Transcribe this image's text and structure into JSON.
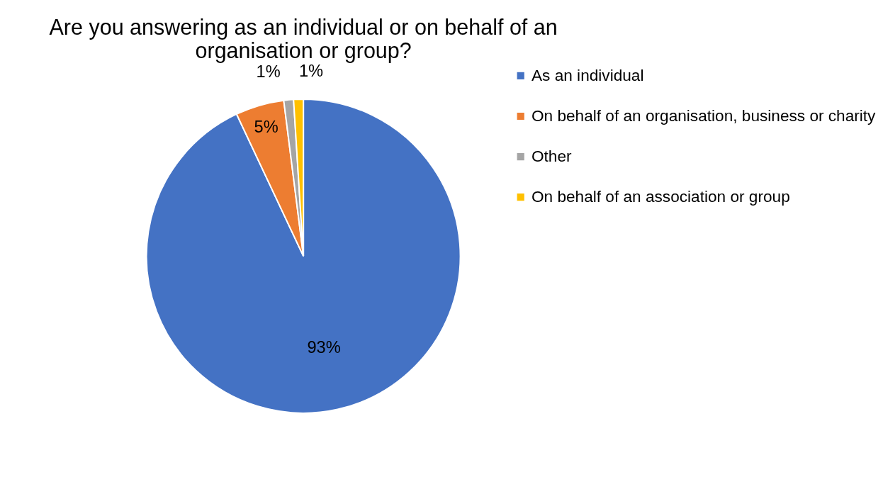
{
  "chart_data": {
    "type": "pie",
    "title": "Are you answering as an individual or on behalf of an organisation or group?",
    "categories": [
      "As an individual",
      "On behalf of an organisation, business or charity",
      "Other",
      "On behalf of an association or group"
    ],
    "values": [
      93,
      5,
      1,
      1
    ],
    "value_labels": [
      "93%",
      "5%",
      "1%",
      "1%"
    ],
    "colors": [
      "#4472c4",
      "#ed7d31",
      "#a5a5a5",
      "#ffc000"
    ],
    "legend": "right"
  }
}
